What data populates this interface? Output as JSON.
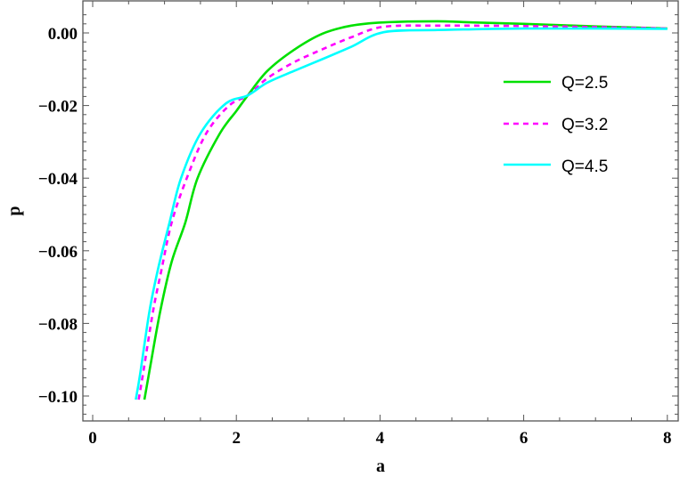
{
  "chart_data": {
    "type": "line",
    "title": "",
    "xlabel": "a",
    "ylabel": "p",
    "xlim": [
      -0.14,
      8.15
    ],
    "ylim": [
      -0.1069,
      0.0089
    ],
    "x_ticks": [
      0,
      2,
      4,
      6,
      8
    ],
    "x_tick_labels": [
      "0",
      "2",
      "4",
      "6",
      "8"
    ],
    "y_ticks": [
      0.0,
      -0.02,
      -0.04,
      -0.06,
      -0.08,
      -0.1
    ],
    "y_tick_labels": [
      "0.00",
      "−0.02",
      "−0.04",
      "−0.06",
      "−0.08",
      "−0.10"
    ],
    "grid": false,
    "legend_position": "upper right",
    "series": [
      {
        "name": "Q=2.5",
        "color": "#00e000",
        "dash": "solid",
        "x": [
          0.72,
          0.8,
          0.94,
          1.1,
          1.29,
          1.46,
          1.77,
          2.0,
          2.16,
          2.43,
          2.8,
          3.2,
          3.6,
          4.05,
          4.8,
          5.29,
          6.0,
          7.0,
          8.0
        ],
        "y": [
          -0.101,
          -0.092,
          -0.0767,
          -0.063,
          -0.0522,
          -0.04,
          -0.0277,
          -0.0215,
          -0.0172,
          -0.0105,
          -0.0047,
          -0.0002,
          0.002,
          0.0029,
          0.0032,
          0.0029,
          0.0025,
          0.0018,
          0.0012
        ]
      },
      {
        "name": "Q=3.2",
        "color": "#ff00ff",
        "dash": "dashed",
        "x": [
          0.64,
          0.7,
          0.84,
          0.95,
          1.1,
          1.31,
          1.58,
          1.9,
          2.16,
          2.43,
          2.8,
          3.2,
          3.6,
          4.05,
          4.8,
          5.29,
          6.0,
          7.0,
          8.0
        ],
        "y": [
          -0.101,
          -0.094,
          -0.0767,
          -0.066,
          -0.0522,
          -0.04,
          -0.0277,
          -0.02,
          -0.0172,
          -0.0125,
          -0.0081,
          -0.0045,
          -0.0012,
          0.0017,
          0.002,
          0.002,
          0.0019,
          0.0016,
          0.0012
        ]
      },
      {
        "name": "Q=4.5",
        "color": "#00ffff",
        "dash": "solid",
        "x": [
          0.6,
          0.66,
          0.79,
          0.91,
          1.07,
          1.23,
          1.5,
          1.85,
          2.16,
          2.43,
          2.8,
          3.2,
          3.6,
          4.05,
          4.8,
          5.29,
          6.0,
          7.0,
          8.0
        ],
        "y": [
          -0.101,
          -0.094,
          -0.0767,
          -0.065,
          -0.0522,
          -0.04,
          -0.0277,
          -0.0195,
          -0.0172,
          -0.0137,
          -0.0105,
          -0.0072,
          -0.0038,
          0.0002,
          0.0008,
          0.001,
          0.0012,
          0.0012,
          0.0011
        ]
      }
    ]
  },
  "legend": {
    "items": [
      {
        "label": "Q=2.5"
      },
      {
        "label": "Q=3.2"
      },
      {
        "label": "Q=4.5"
      }
    ]
  },
  "axes": {
    "x_label": "a",
    "y_label": "p"
  }
}
